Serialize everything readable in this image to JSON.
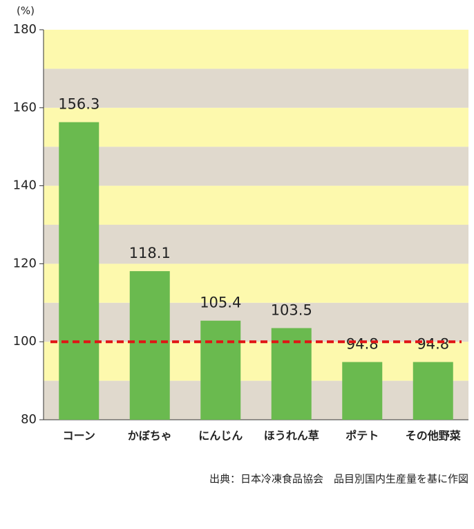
{
  "chart_data": {
    "type": "bar",
    "y_unit": "(%)",
    "categories": [
      "コーン",
      "かぼちゃ",
      "にんじん",
      "ほうれん草",
      "ポテト",
      "その他野菜"
    ],
    "values": [
      156.3,
      118.1,
      105.4,
      103.5,
      94.8,
      94.8
    ],
    "color": "#6aba4f",
    "ylim": [
      80,
      180
    ],
    "yticks": [
      80,
      100,
      120,
      140,
      160,
      180
    ],
    "band_colors": [
      "#e0d9cd",
      "#fdf9ad"
    ],
    "reference_line": 100,
    "reference_color": "#e01515",
    "source": "出典：日本冷凍食品協会　品目別国内生産量を基に作図"
  }
}
